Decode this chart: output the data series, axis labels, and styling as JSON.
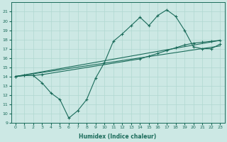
{
  "xlabel": "Humidex (Indice chaleur)",
  "ylabel": "",
  "bg_color": "#cce8e4",
  "line_color": "#1a6b5a",
  "grid_color": "#b0d8d0",
  "ylim": [
    9,
    22
  ],
  "xlim": [
    -0.5,
    23.5
  ],
  "yticks": [
    9,
    10,
    11,
    12,
    13,
    14,
    15,
    16,
    17,
    18,
    19,
    20,
    21
  ],
  "xticks": [
    0,
    1,
    2,
    3,
    4,
    5,
    6,
    7,
    8,
    9,
    10,
    11,
    12,
    13,
    14,
    15,
    16,
    17,
    18,
    19,
    20,
    21,
    22,
    23
  ],
  "line1_x": [
    0,
    1,
    2,
    3,
    4,
    5,
    6,
    7,
    8,
    9,
    10,
    11,
    12,
    13,
    14,
    15,
    16,
    17,
    18,
    19,
    20,
    21,
    22,
    23
  ],
  "line1_y": [
    14,
    14.1,
    14.1,
    13.3,
    12.2,
    11.5,
    9.5,
    10.3,
    11.5,
    13.8,
    15.5,
    17.8,
    18.6,
    19.5,
    20.4,
    19.5,
    20.6,
    21.2,
    20.5,
    19.0,
    17.2,
    17.0,
    17.0,
    17.5
  ],
  "line2_x": [
    0,
    1,
    2,
    3,
    14,
    15,
    16,
    17,
    18,
    19,
    20,
    21,
    22,
    23
  ],
  "line2_y": [
    14,
    14.1,
    14.1,
    14.2,
    15.9,
    16.2,
    16.5,
    16.8,
    17.1,
    17.4,
    17.6,
    17.7,
    17.8,
    17.9
  ],
  "line3_x": [
    0,
    23
  ],
  "line3_y": [
    14.0,
    17.3
  ],
  "line4_x": [
    0,
    23
  ],
  "line4_y": [
    14.0,
    17.9
  ],
  "marker_x": [
    0,
    1,
    2,
    3,
    4,
    5,
    6,
    7,
    8,
    9,
    10,
    11,
    12,
    13,
    14,
    15,
    16,
    17,
    18,
    19,
    20,
    21,
    22,
    23
  ],
  "marker_y": [
    14,
    14.1,
    14.1,
    13.3,
    12.2,
    11.5,
    9.5,
    10.3,
    11.5,
    13.8,
    15.5,
    17.8,
    18.6,
    19.5,
    20.4,
    19.5,
    20.6,
    21.2,
    20.5,
    19.0,
    17.2,
    17.0,
    17.0,
    17.5
  ]
}
